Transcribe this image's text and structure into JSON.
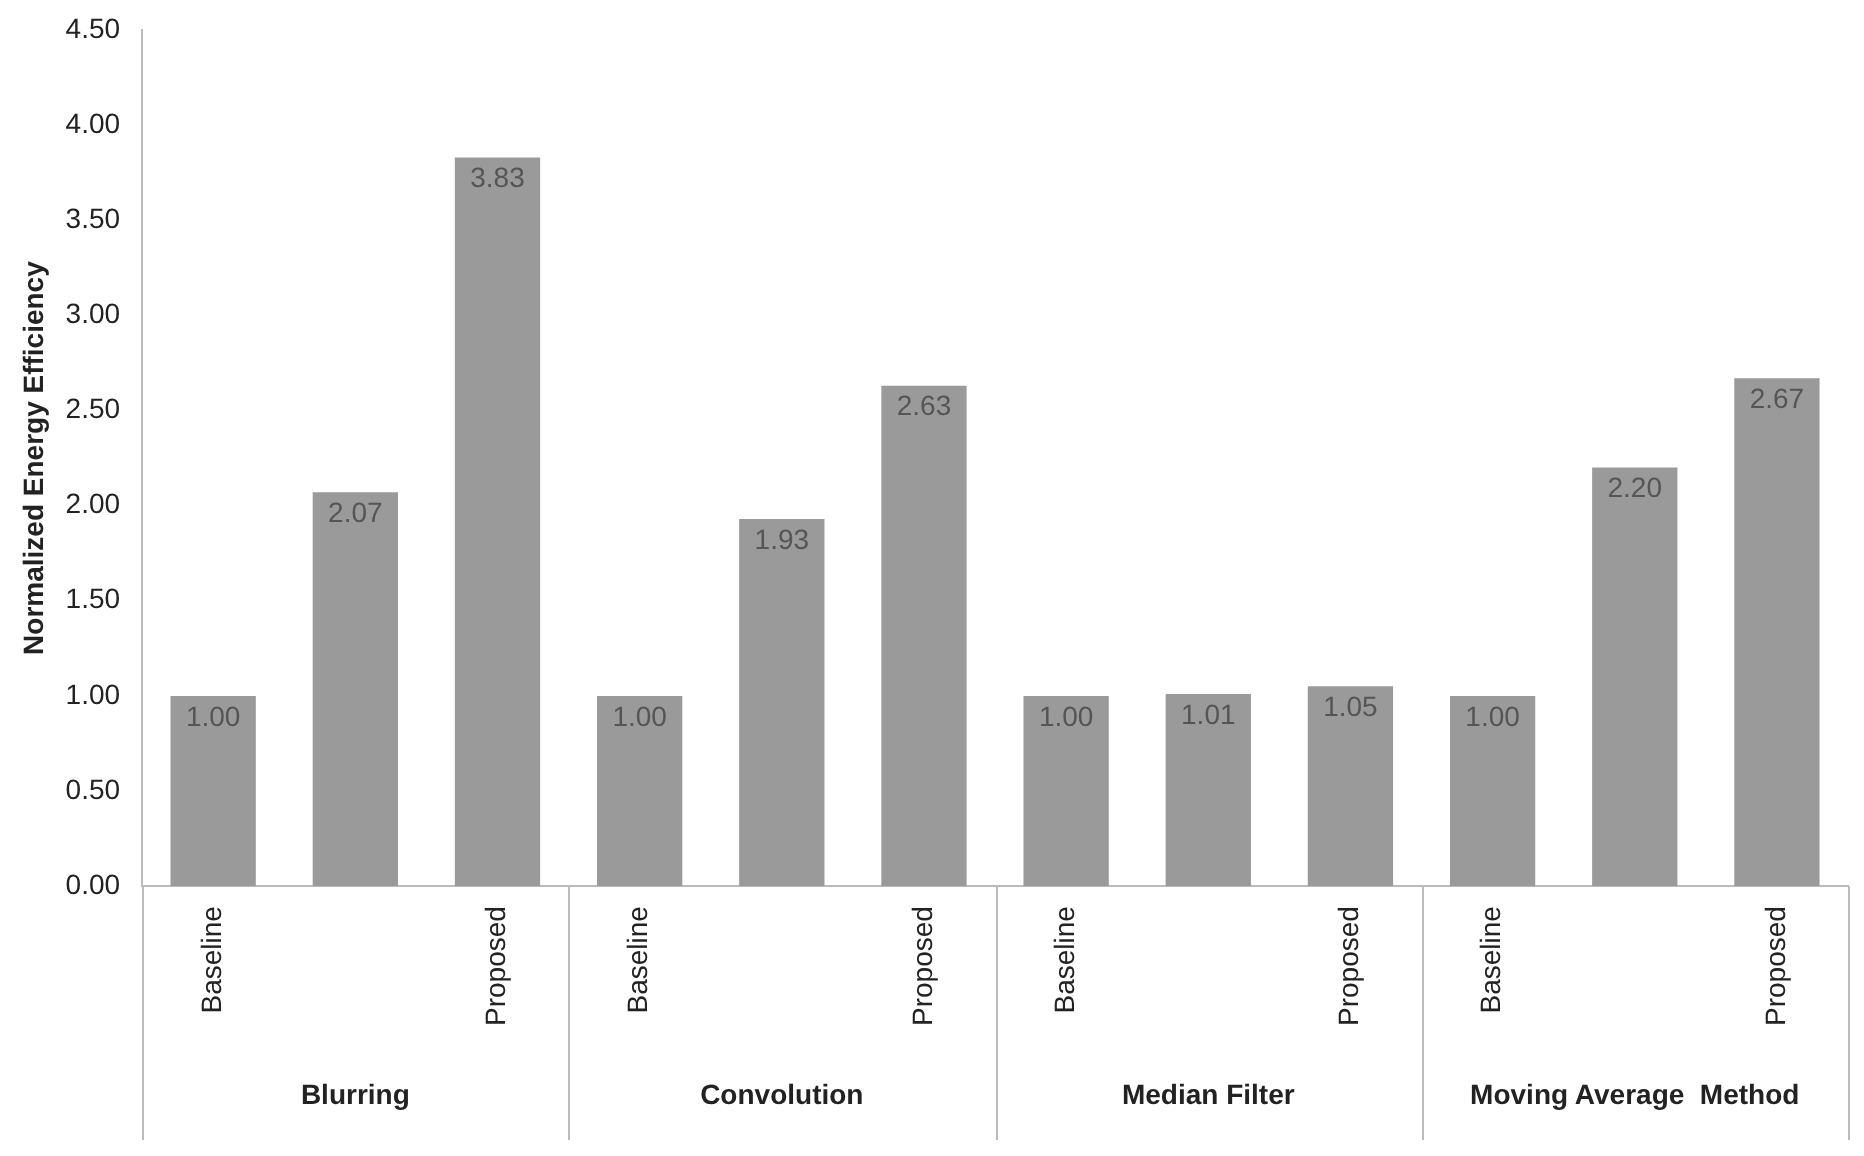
{
  "chart_data": {
    "type": "bar",
    "ylabel": "Normalized Energy Efficiency",
    "categories": [
      "Baseline",
      null,
      "Proposed",
      "Baseline",
      null,
      "Proposed",
      "Baseline",
      null,
      "Proposed",
      "Baseline",
      null,
      "Proposed"
    ],
    "values": [
      1.0,
      2.07,
      3.83,
      1.0,
      1.93,
      2.63,
      1.0,
      1.01,
      1.05,
      1.0,
      2.2,
      2.67
    ],
    "value_labels": [
      "1.00",
      "2.07",
      "3.83",
      "1.00",
      "1.93",
      "2.63",
      "1.00",
      "1.01",
      "1.05",
      "1.00",
      "2.20",
      "2.67"
    ],
    "color": "#9a9a9a",
    "ylim": [
      0,
      4.5
    ],
    "yticks": [
      {
        "value": 0,
        "label": "0.00"
      },
      {
        "value": 0.5,
        "label": "0.50"
      },
      {
        "value": 1,
        "label": "1.00"
      },
      {
        "value": 1.5,
        "label": "1.50"
      },
      {
        "value": 2,
        "label": "2.00"
      },
      {
        "value": 2.5,
        "label": "2.50"
      },
      {
        "value": 3,
        "label": "3.00"
      },
      {
        "value": 3.5,
        "label": "3.50"
      },
      {
        "value": 4,
        "label": "4.00"
      },
      {
        "value": 4.5,
        "label": "4.50"
      }
    ],
    "annotations": [
      "Blurring",
      "Convolution",
      "Median Filter",
      "Moving Average  Method"
    ],
    "grid": false,
    "legend": false
  }
}
